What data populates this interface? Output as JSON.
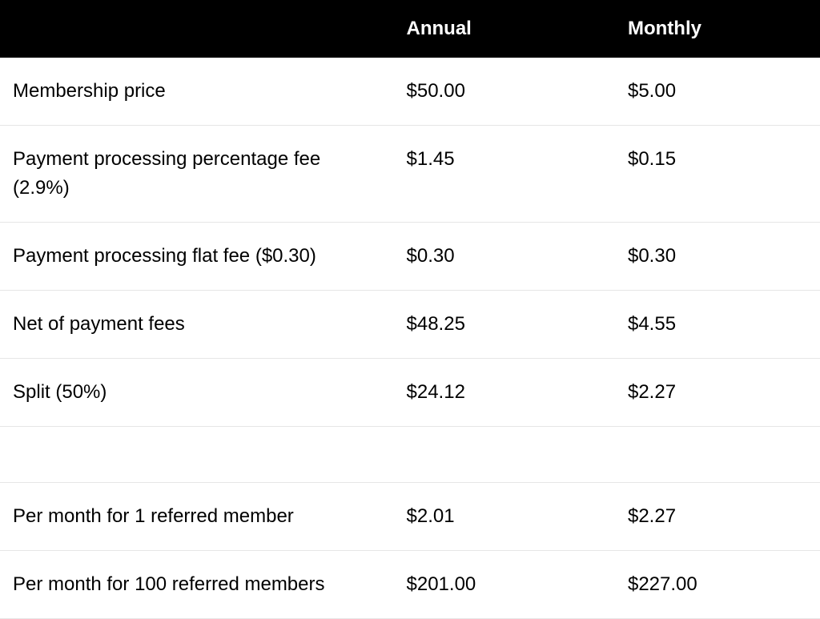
{
  "table": {
    "columns": [
      "",
      "Annual",
      "Monthly"
    ],
    "column_widths_pct": [
      48,
      27,
      25
    ],
    "header_bg": "#000000",
    "header_fg": "#ffffff",
    "header_fontsize": 24,
    "header_fontweight": 700,
    "row_border_color": "#e6e6e6",
    "cell_fontsize": 24,
    "cell_fg": "#000000",
    "background": "#ffffff",
    "groups": [
      {
        "rows": [
          [
            "Membership price",
            "$50.00",
            "$5.00"
          ],
          [
            "Payment processing percentage fee (2.9%)",
            "$1.45",
            "$0.15"
          ],
          [
            "Payment processing flat fee ($0.30)",
            "$0.30",
            "$0.30"
          ],
          [
            "Net of payment fees",
            "$48.25",
            "$4.55"
          ],
          [
            "Split (50%)",
            "$24.12",
            "$2.27"
          ]
        ]
      },
      {
        "rows": [
          [
            "Per month for 1 referred member",
            "$2.01",
            "$2.27"
          ],
          [
            "Per month for 100 referred members",
            "$201.00",
            "$227.00"
          ]
        ]
      }
    ]
  }
}
